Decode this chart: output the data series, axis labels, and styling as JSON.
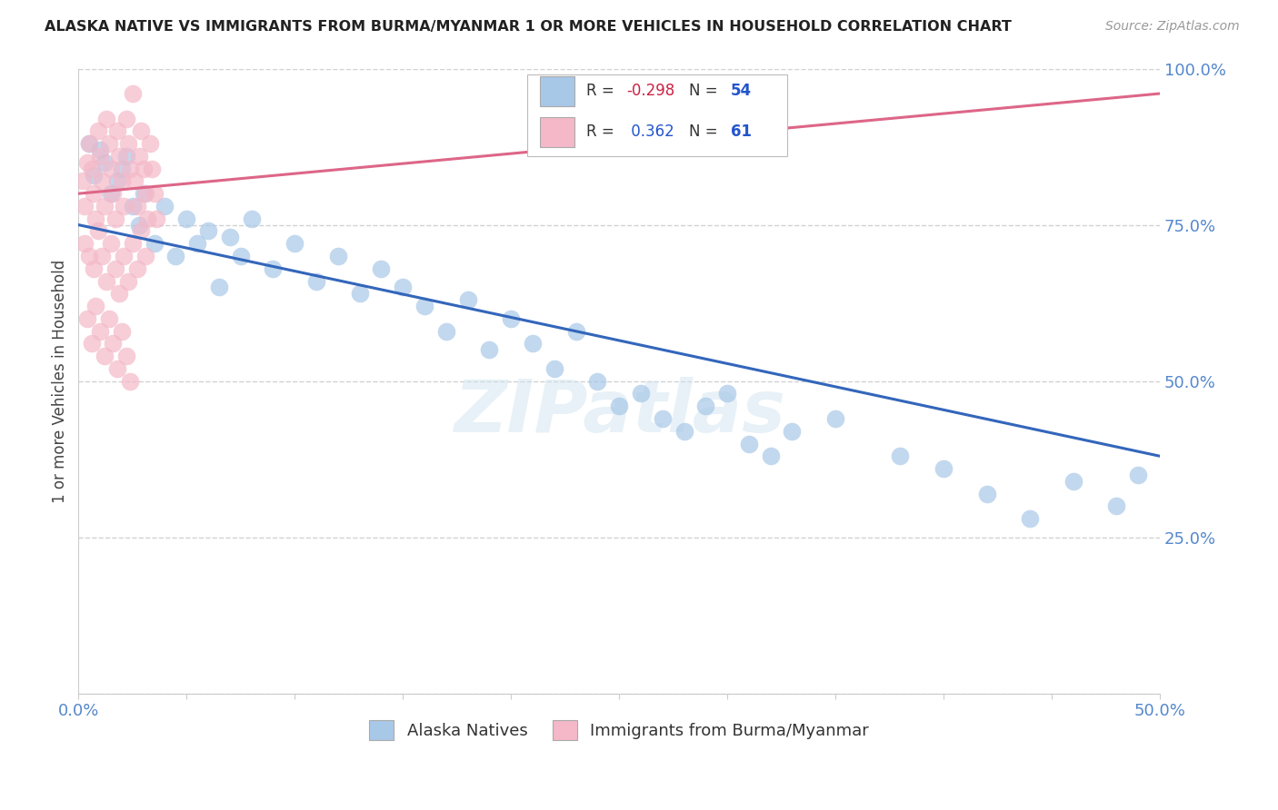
{
  "title": "ALASKA NATIVE VS IMMIGRANTS FROM BURMA/MYANMAR 1 OR MORE VEHICLES IN HOUSEHOLD CORRELATION CHART",
  "source": "Source: ZipAtlas.com",
  "ylabel": "1 or more Vehicles in Household",
  "xlim": [
    0.0,
    0.5
  ],
  "ylim": [
    0.0,
    1.0
  ],
  "blue_R": -0.298,
  "blue_N": 54,
  "pink_R": 0.362,
  "pink_N": 61,
  "blue_color": "#a8c8e8",
  "pink_color": "#f4b8c8",
  "blue_line_color": "#3366bb",
  "pink_line_color": "#dd6688",
  "blue_trendline": [
    0.0,
    0.75,
    0.5,
    0.38
  ],
  "pink_trendline": [
    0.0,
    0.8,
    0.5,
    0.96
  ],
  "watermark": "ZIPatlas",
  "bg_color": "#ffffff",
  "grid_color": "#cccccc",
  "blue_x": [
    0.005,
    0.007,
    0.01,
    0.012,
    0.015,
    0.018,
    0.02,
    0.022,
    0.025,
    0.028,
    0.03,
    0.035,
    0.04,
    0.045,
    0.05,
    0.055,
    0.06,
    0.065,
    0.07,
    0.075,
    0.08,
    0.09,
    0.1,
    0.11,
    0.12,
    0.13,
    0.14,
    0.15,
    0.16,
    0.17,
    0.18,
    0.19,
    0.2,
    0.21,
    0.22,
    0.23,
    0.24,
    0.25,
    0.26,
    0.27,
    0.28,
    0.29,
    0.3,
    0.31,
    0.32,
    0.33,
    0.35,
    0.38,
    0.4,
    0.42,
    0.44,
    0.46,
    0.48,
    0.49
  ],
  "blue_y": [
    0.88,
    0.83,
    0.87,
    0.85,
    0.8,
    0.82,
    0.84,
    0.86,
    0.78,
    0.75,
    0.8,
    0.72,
    0.78,
    0.7,
    0.76,
    0.72,
    0.74,
    0.65,
    0.73,
    0.7,
    0.76,
    0.68,
    0.72,
    0.66,
    0.7,
    0.64,
    0.68,
    0.65,
    0.62,
    0.58,
    0.63,
    0.55,
    0.6,
    0.56,
    0.52,
    0.58,
    0.5,
    0.46,
    0.48,
    0.44,
    0.42,
    0.46,
    0.48,
    0.4,
    0.38,
    0.42,
    0.44,
    0.38,
    0.36,
    0.32,
    0.28,
    0.34,
    0.3,
    0.35
  ],
  "pink_x": [
    0.002,
    0.003,
    0.004,
    0.005,
    0.006,
    0.007,
    0.008,
    0.009,
    0.01,
    0.011,
    0.012,
    0.013,
    0.014,
    0.015,
    0.016,
    0.017,
    0.018,
    0.019,
    0.02,
    0.021,
    0.022,
    0.023,
    0.024,
    0.025,
    0.026,
    0.027,
    0.028,
    0.029,
    0.03,
    0.031,
    0.032,
    0.033,
    0.034,
    0.035,
    0.036,
    0.003,
    0.005,
    0.007,
    0.009,
    0.011,
    0.013,
    0.015,
    0.017,
    0.019,
    0.021,
    0.023,
    0.025,
    0.027,
    0.029,
    0.031,
    0.004,
    0.006,
    0.008,
    0.01,
    0.012,
    0.014,
    0.016,
    0.018,
    0.02,
    0.022,
    0.024
  ],
  "pink_y": [
    0.82,
    0.78,
    0.85,
    0.88,
    0.84,
    0.8,
    0.76,
    0.9,
    0.86,
    0.82,
    0.78,
    0.92,
    0.88,
    0.84,
    0.8,
    0.76,
    0.9,
    0.86,
    0.82,
    0.78,
    0.92,
    0.88,
    0.84,
    0.96,
    0.82,
    0.78,
    0.86,
    0.9,
    0.84,
    0.8,
    0.76,
    0.88,
    0.84,
    0.8,
    0.76,
    0.72,
    0.7,
    0.68,
    0.74,
    0.7,
    0.66,
    0.72,
    0.68,
    0.64,
    0.7,
    0.66,
    0.72,
    0.68,
    0.74,
    0.7,
    0.6,
    0.56,
    0.62,
    0.58,
    0.54,
    0.6,
    0.56,
    0.52,
    0.58,
    0.54,
    0.5
  ]
}
